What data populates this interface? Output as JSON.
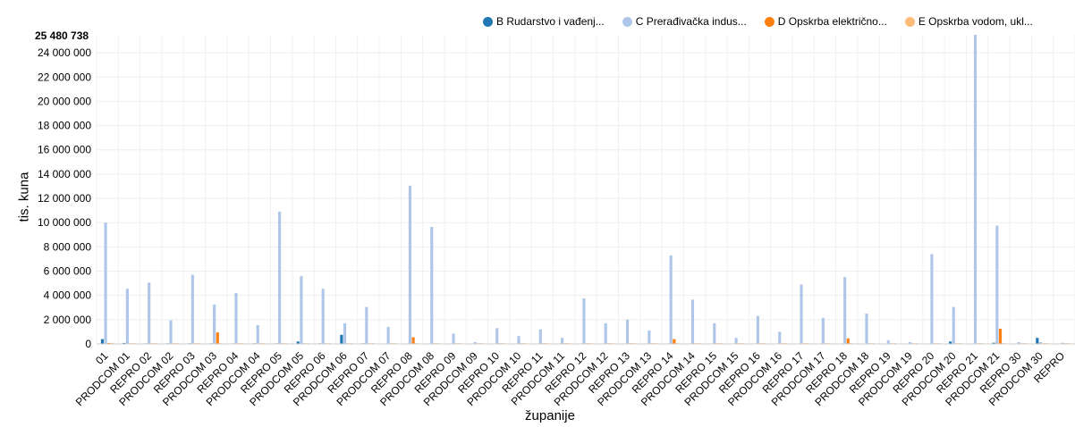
{
  "chart_data": {
    "type": "bar",
    "ylabel": "tis. kuna",
    "xlabel": "županije",
    "ymax_label": "25 480 738",
    "ylim": [
      0,
      25480738
    ],
    "yticks": [
      0,
      2000000,
      4000000,
      6000000,
      8000000,
      10000000,
      12000000,
      14000000,
      16000000,
      18000000,
      20000000,
      22000000,
      24000000
    ],
    "ytick_labels": [
      "0",
      "2 000 000",
      "4 000 000",
      "6 000 000",
      "8 000 000",
      "10 000 000",
      "12 000 000",
      "14 000 000",
      "16 000 000",
      "18 000 000",
      "20 000 000",
      "22 000 000",
      "24 000 000"
    ],
    "categories": [
      "01",
      "PRODCOM 01",
      "REPRO 02",
      "PRODCOM 02",
      "REPRO 03",
      "PRODCOM 03",
      "REPRO 04",
      "PRODCOM 04",
      "REPRO 05",
      "PRODCOM 05",
      "REPRO 06",
      "PRODCOM 06",
      "REPRO 07",
      "PRODCOM 07",
      "REPRO 08",
      "PRODCOM 08",
      "REPRO 09",
      "PRODCOM 09",
      "REPRO 10",
      "PRODCOM 10",
      "REPRO 11",
      "PRODCOM 11",
      "REPRO 12",
      "PRODCOM 12",
      "REPRO 13",
      "PRODCOM 13",
      "REPRO 14",
      "PRODCOM 14",
      "REPRO 15",
      "PRODCOM 15",
      "REPRO 16",
      "PRODCOM 16",
      "REPRO 17",
      "PRODCOM 17",
      "REPRO 18",
      "PRODCOM 18",
      "REPRO 19",
      "PRODCOM 19",
      "REPRO 20",
      "PRODCOM 20",
      "REPRO 21",
      "PRODCOM 21",
      "REPRO 30",
      "PRODCOM 30",
      "REPRO"
    ],
    "series": [
      {
        "name": "B Rudarstvo i vađenj...",
        "color": "#1f77b4",
        "values": [
          400000,
          80000,
          50000,
          50000,
          50000,
          50000,
          40000,
          50000,
          50000,
          200000,
          50000,
          750000,
          50000,
          30000,
          30000,
          30000,
          30000,
          30000,
          30000,
          30000,
          30000,
          30000,
          30000,
          30000,
          30000,
          30000,
          30000,
          30000,
          30000,
          30000,
          30000,
          30000,
          30000,
          30000,
          30000,
          30000,
          30000,
          30000,
          30000,
          200000,
          30000,
          100000,
          30000,
          500000,
          30000
        ]
      },
      {
        "name": "C Prerađivačka indus...",
        "color": "#aec7e8",
        "values": [
          10000000,
          4550000,
          5050000,
          1950000,
          5700000,
          3250000,
          4200000,
          1550000,
          10900000,
          5600000,
          4550000,
          1700000,
          3050000,
          1400000,
          13050000,
          9650000,
          850000,
          150000,
          1300000,
          650000,
          1200000,
          500000,
          3750000,
          1700000,
          2000000,
          1100000,
          7300000,
          3650000,
          1700000,
          500000,
          2300000,
          1000000,
          4900000,
          2150000,
          5500000,
          2500000,
          300000,
          150000,
          7400000,
          3050000,
          25480738,
          9750000,
          150000,
          150000,
          100000
        ]
      },
      {
        "name": "D Opskrba električno...",
        "color": "#ff7f0e",
        "values": [
          80000,
          50000,
          50000,
          50000,
          50000,
          950000,
          50000,
          50000,
          50000,
          50000,
          50000,
          50000,
          50000,
          50000,
          550000,
          50000,
          50000,
          50000,
          50000,
          50000,
          50000,
          50000,
          50000,
          50000,
          50000,
          50000,
          400000,
          50000,
          50000,
          50000,
          50000,
          50000,
          50000,
          50000,
          450000,
          50000,
          50000,
          50000,
          50000,
          50000,
          50000,
          1250000,
          50000,
          50000,
          50000
        ]
      },
      {
        "name": "E Opskrba vodom, ukl...",
        "color": "#ffbb78",
        "values": [
          80000,
          60000,
          60000,
          60000,
          60000,
          60000,
          60000,
          60000,
          60000,
          60000,
          60000,
          60000,
          60000,
          60000,
          60000,
          60000,
          60000,
          60000,
          60000,
          60000,
          60000,
          60000,
          60000,
          60000,
          60000,
          60000,
          60000,
          60000,
          60000,
          60000,
          60000,
          60000,
          60000,
          60000,
          60000,
          60000,
          60000,
          60000,
          60000,
          60000,
          60000,
          60000,
          60000,
          60000,
          60000
        ]
      }
    ]
  }
}
